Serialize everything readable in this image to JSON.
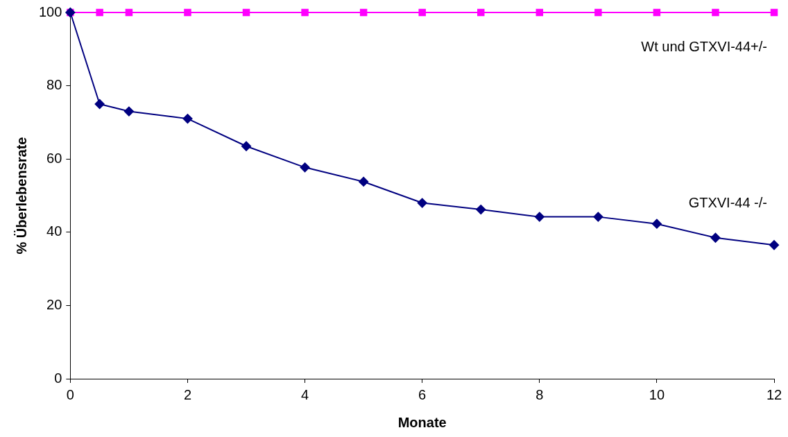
{
  "chart_data": {
    "type": "line",
    "xlabel": "Monate",
    "ylabel": "% Überlebensrate",
    "x": [
      0,
      0.5,
      1,
      2,
      3,
      4,
      5,
      6,
      7,
      8,
      9,
      10,
      11,
      12
    ],
    "series": [
      {
        "name": "Wt und GTXVI-44+/-",
        "color": "#ff00ff",
        "marker": "square",
        "values": [
          100,
          100,
          100,
          100,
          100,
          100,
          100,
          100,
          100,
          100,
          100,
          100,
          100,
          100
        ]
      },
      {
        "name": "GTXVI-44 -/-",
        "color": "#000080",
        "marker": "diamond",
        "values": [
          100,
          75,
          73,
          71,
          63.5,
          57.7,
          53.8,
          48,
          46.2,
          44.2,
          44.2,
          42.3,
          38.5,
          36.5
        ]
      }
    ],
    "xlim": [
      0,
      12
    ],
    "xticks": [
      0,
      2,
      4,
      6,
      8,
      10,
      12
    ],
    "ylim": [
      0,
      100
    ],
    "yticks": [
      0,
      20,
      40,
      60,
      80,
      100
    ],
    "grid": false,
    "legend": false,
    "line_style": "solid"
  }
}
